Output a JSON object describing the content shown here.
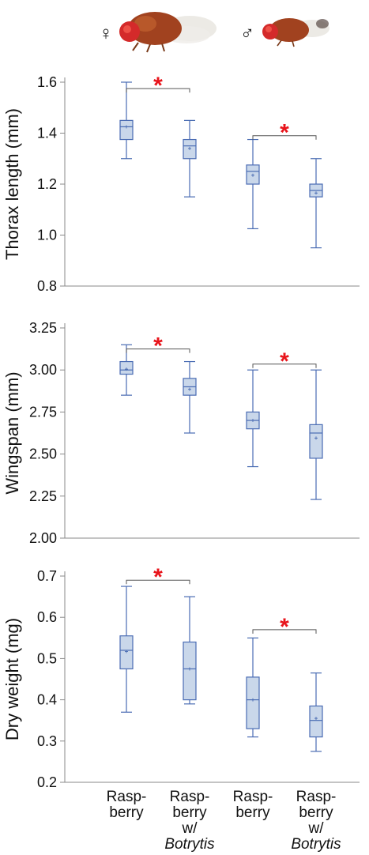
{
  "figure": {
    "categories": [
      {
        "lines": [
          "Rasp-",
          "berry"
        ],
        "italic_last": false
      },
      {
        "lines": [
          "Rasp-",
          "berry",
          "w/",
          "Botrytis"
        ],
        "italic_last": true
      },
      {
        "lines": [
          "Rasp-",
          "berry"
        ],
        "italic_last": false
      },
      {
        "lines": [
          "Rasp-",
          "berry",
          "w/",
          "Botrytis"
        ],
        "italic_last": true
      }
    ],
    "sex_symbols": {
      "female": "♀",
      "male": "♂"
    },
    "significance_marker": "*",
    "colors": {
      "box_stroke": "#4a6cb3",
      "box_fill": "#c9d7ea",
      "star": "#e8141b",
      "axis": "#888888"
    }
  },
  "chart_data": [
    {
      "type": "box",
      "ylabel": "Thorax length (mm)",
      "ylim": [
        0.8,
        1.6
      ],
      "yticks": [
        0.8,
        1.0,
        1.2,
        1.4,
        1.6
      ],
      "tick_labels": [
        "0.8",
        "1.0",
        "1.2",
        "1.4",
        "1.6"
      ],
      "boxes": [
        {
          "min": 1.3,
          "q1": 1.375,
          "median": 1.425,
          "q3": 1.45,
          "max": 1.6,
          "mean": 1.425
        },
        {
          "min": 1.15,
          "q1": 1.3,
          "median": 1.35,
          "q3": 1.375,
          "max": 1.45,
          "mean": 1.34
        },
        {
          "min": 1.025,
          "q1": 1.2,
          "median": 1.25,
          "q3": 1.275,
          "max": 1.375,
          "mean": 1.235
        },
        {
          "min": 0.95,
          "q1": 1.15,
          "median": 1.175,
          "q3": 1.2,
          "max": 1.3,
          "mean": 1.165
        }
      ],
      "comparisons": [
        {
          "from": 0,
          "to": 1,
          "y": 1.575
        },
        {
          "from": 2,
          "to": 3,
          "y": 1.39
        }
      ]
    },
    {
      "type": "box",
      "ylabel": "Wingspan (mm)",
      "ylim": [
        2.0,
        3.25
      ],
      "yticks": [
        2.0,
        2.25,
        2.5,
        2.75,
        3.0,
        3.25
      ],
      "tick_labels": [
        "2.00",
        "2.25",
        "2.50",
        "2.75",
        "3.00",
        "3.25"
      ],
      "boxes": [
        {
          "min": 2.85,
          "q1": 2.975,
          "median": 3.0,
          "q3": 3.05,
          "max": 3.15,
          "mean": 3.005
        },
        {
          "min": 2.625,
          "q1": 2.85,
          "median": 2.9,
          "q3": 2.95,
          "max": 3.05,
          "mean": 2.885
        },
        {
          "min": 2.425,
          "q1": 2.65,
          "median": 2.7,
          "q3": 2.75,
          "max": 3.0,
          "mean": 2.7
        },
        {
          "min": 2.23,
          "q1": 2.475,
          "median": 2.625,
          "q3": 2.675,
          "max": 3.0,
          "mean": 2.595
        }
      ],
      "comparisons": [
        {
          "from": 0,
          "to": 1,
          "y": 3.125
        },
        {
          "from": 2,
          "to": 3,
          "y": 3.035
        }
      ]
    },
    {
      "type": "box",
      "ylabel": "Dry weight (mg)",
      "ylim": [
        0.2,
        0.7
      ],
      "yticks": [
        0.2,
        0.3,
        0.4,
        0.5,
        0.6,
        0.7
      ],
      "tick_labels": [
        "0.2",
        "0.3",
        "0.4",
        "0.5",
        "0.6",
        "0.7"
      ],
      "boxes": [
        {
          "min": 0.37,
          "q1": 0.475,
          "median": 0.52,
          "q3": 0.555,
          "max": 0.675,
          "mean": 0.517
        },
        {
          "min": 0.39,
          "q1": 0.4,
          "median": 0.475,
          "q3": 0.54,
          "max": 0.65,
          "mean": 0.475
        },
        {
          "min": 0.31,
          "q1": 0.33,
          "median": 0.4,
          "q3": 0.455,
          "max": 0.55,
          "mean": 0.4
        },
        {
          "min": 0.275,
          "q1": 0.31,
          "median": 0.35,
          "q3": 0.385,
          "max": 0.465,
          "mean": 0.355
        }
      ],
      "comparisons": [
        {
          "from": 0,
          "to": 1,
          "y": 0.69
        },
        {
          "from": 2,
          "to": 3,
          "y": 0.57
        }
      ]
    }
  ]
}
